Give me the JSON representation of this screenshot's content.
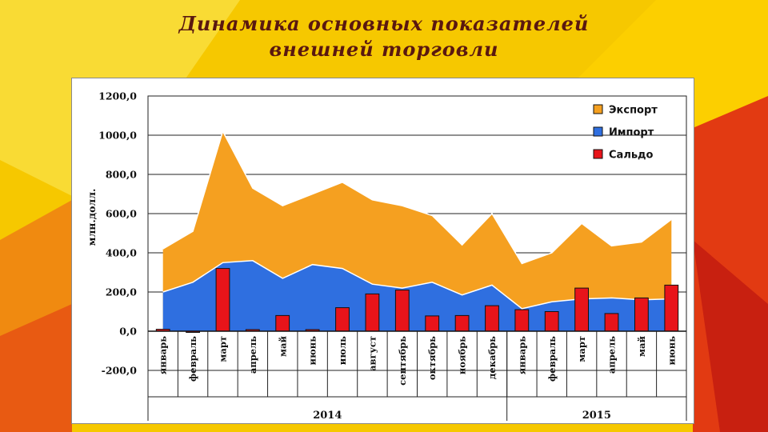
{
  "slide": {
    "title_line1": "Динамика основных показателей",
    "title_line2": "внешней торговли"
  },
  "colors": {
    "export": "#f5a020",
    "import": "#2f6fe0",
    "saldo": "#e8141a",
    "background_yellow": "#f6c800",
    "background_red": "#e23a12"
  },
  "chart_data": {
    "type": "area",
    "ylabel": "млн.долл.",
    "ylim": [
      -200,
      1200
    ],
    "yticks": [
      "1200,0",
      "1000,0",
      "800,0",
      "600,0",
      "400,0",
      "200,0",
      "0,0",
      "-200,0"
    ],
    "ytick_values": [
      1200,
      1000,
      800,
      600,
      400,
      200,
      0,
      -200
    ],
    "grid": true,
    "legend_position": "top-right",
    "categories": [
      "январь",
      "февраль",
      "март",
      "апрель",
      "май",
      "июнь",
      "июль",
      "август",
      "сентябрь",
      "октябрь",
      "ноябрь",
      "декабрь",
      "январь",
      "февраль",
      "март",
      "апрель",
      "май",
      "июнь"
    ],
    "year_groups": [
      {
        "label": "2014",
        "count": 12
      },
      {
        "label": "2015",
        "count": 6
      }
    ],
    "series": [
      {
        "name": "Экспорт",
        "kind": "area",
        "values": [
          420,
          510,
          1020,
          730,
          640,
          700,
          760,
          670,
          640,
          590,
          440,
          600,
          345,
          400,
          550,
          435,
          455,
          570
        ]
      },
      {
        "name": "Импорт",
        "kind": "area",
        "values": [
          200,
          250,
          350,
          360,
          270,
          340,
          320,
          240,
          220,
          250,
          185,
          235,
          115,
          150,
          165,
          170,
          160,
          165
        ]
      },
      {
        "name": "Сальдо",
        "kind": "bar",
        "values": [
          10,
          0,
          320,
          8,
          80,
          8,
          120,
          190,
          210,
          78,
          80,
          130,
          110,
          100,
          220,
          90,
          170,
          235
        ]
      }
    ]
  }
}
